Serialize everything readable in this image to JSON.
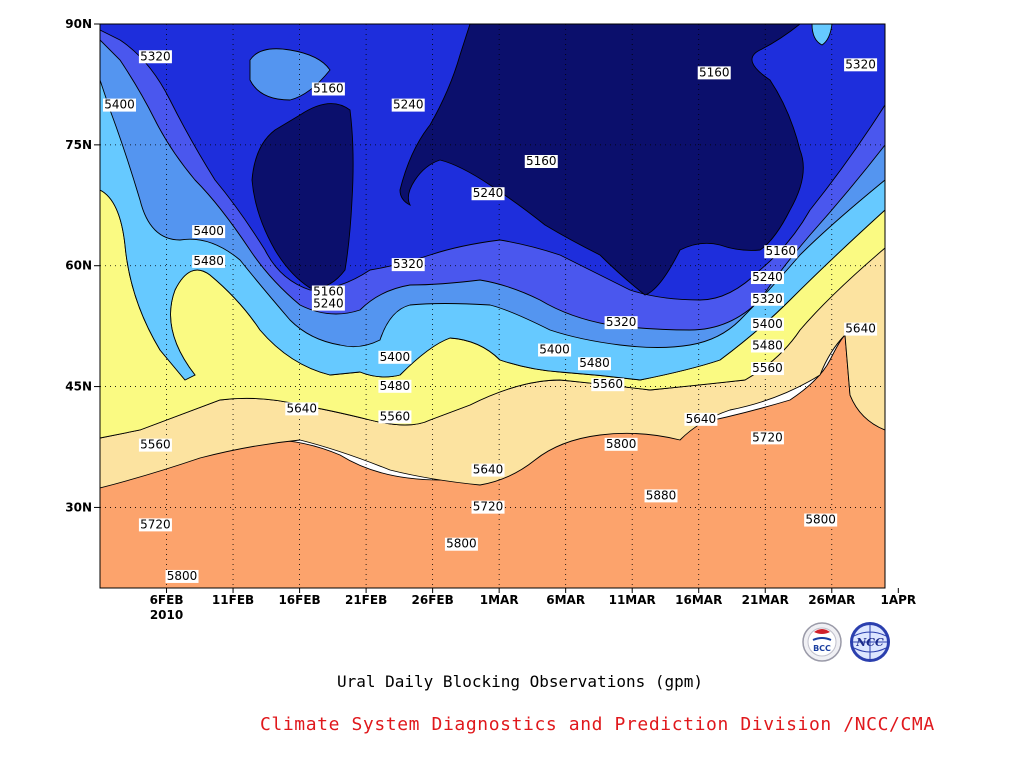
{
  "chart_data": {
    "type": "heatmap",
    "subtype": "filled-contour",
    "title": "Ural Daily Blocking Observations (gpm)",
    "footer": "Climate System Diagnostics and Prediction Division /NCC/CMA",
    "x_ticks": [
      "6FEB",
      "11FEB",
      "16FEB",
      "21FEB",
      "26FEB",
      "1MAR",
      "6MAR",
      "11MAR",
      "16MAR",
      "21MAR",
      "26MAR",
      "1APR"
    ],
    "x_tick_year": "2010",
    "x_range": [
      "2010-02-01",
      "2010-04-01"
    ],
    "y_ticks": [
      "30N",
      "45N",
      "60N",
      "75N",
      "90N"
    ],
    "y_range": [
      20,
      90
    ],
    "grid": true,
    "levels": [
      5160,
      5240,
      5320,
      5400,
      5480,
      5560,
      5640,
      5720,
      5800,
      5880
    ],
    "colors": [
      "#0b0f6c",
      "#1e2edc",
      "#4a57ee",
      "#5495f0",
      "#66c9ff",
      "#fafa82",
      "#fce3a0",
      "#fca36c",
      "#f97242",
      "#f57475",
      "#f03645"
    ],
    "contour_labels": [
      {
        "date": "2010-02-04",
        "lat": 85.5,
        "value": "5320"
      },
      {
        "date": "2010-02-01",
        "lat": 79.5,
        "value": "5400"
      },
      {
        "date": "2010-02-17",
        "lat": 81.5,
        "value": "5160"
      },
      {
        "date": "2010-02-23",
        "lat": 79.5,
        "value": "5240"
      },
      {
        "date": "2010-03-05",
        "lat": 72.5,
        "value": "5160"
      },
      {
        "date": "2010-03-01",
        "lat": 68.5,
        "value": "5240"
      },
      {
        "date": "2010-03-18",
        "lat": 83.5,
        "value": "5160"
      },
      {
        "date": "2010-03-29",
        "lat": 84.5,
        "value": "5320"
      },
      {
        "date": "2010-02-08",
        "lat": 63.8,
        "value": "5400"
      },
      {
        "date": "2010-02-08",
        "lat": 60.1,
        "value": "5480"
      },
      {
        "date": "2010-02-23",
        "lat": 59.7,
        "value": "5320"
      },
      {
        "date": "2010-02-17",
        "lat": 56.3,
        "value": "5160"
      },
      {
        "date": "2010-02-17",
        "lat": 54.8,
        "value": "5240"
      },
      {
        "date": "2010-02-22",
        "lat": 48.2,
        "value": "5400"
      },
      {
        "date": "2010-02-22",
        "lat": 44.6,
        "value": "5480"
      },
      {
        "date": "2010-02-22",
        "lat": 40.8,
        "value": "5560"
      },
      {
        "date": "2010-02-15",
        "lat": 41.8,
        "value": "5640"
      },
      {
        "date": "2010-02-04",
        "lat": 37.3,
        "value": "5560"
      },
      {
        "date": "2010-02-04",
        "lat": 27.4,
        "value": "5720"
      },
      {
        "date": "2010-02-06",
        "lat": 21.0,
        "value": "5800"
      },
      {
        "date": "2010-03-01",
        "lat": 34.2,
        "value": "5640"
      },
      {
        "date": "2010-03-01",
        "lat": 29.6,
        "value": "5720"
      },
      {
        "date": "2010-02-27",
        "lat": 25.0,
        "value": "5800"
      },
      {
        "date": "2010-03-06",
        "lat": 49.1,
        "value": "5400"
      },
      {
        "date": "2010-03-09",
        "lat": 47.4,
        "value": "5480"
      },
      {
        "date": "2010-03-10",
        "lat": 44.8,
        "value": "5560"
      },
      {
        "date": "2010-03-11",
        "lat": 52.5,
        "value": "5320"
      },
      {
        "date": "2010-03-11",
        "lat": 37.4,
        "value": "5800"
      },
      {
        "date": "2010-03-14",
        "lat": 31.0,
        "value": "5880"
      },
      {
        "date": "2010-03-17",
        "lat": 40.5,
        "value": "5640"
      },
      {
        "date": "2010-03-23",
        "lat": 61.3,
        "value": "5160"
      },
      {
        "date": "2010-03-22",
        "lat": 58.1,
        "value": "5240"
      },
      {
        "date": "2010-03-22",
        "lat": 55.4,
        "value": "5320"
      },
      {
        "date": "2010-03-22",
        "lat": 52.3,
        "value": "5400"
      },
      {
        "date": "2010-03-22",
        "lat": 49.6,
        "value": "5480"
      },
      {
        "date": "2010-03-22",
        "lat": 46.8,
        "value": "5560"
      },
      {
        "date": "2010-03-22",
        "lat": 38.2,
        "value": "5720"
      },
      {
        "date": "2010-03-26",
        "lat": 28.0,
        "value": "5800"
      },
      {
        "date": "2010-03-29",
        "lat": 51.7,
        "value": "5640"
      }
    ]
  },
  "logos": {
    "left_label": "BCC",
    "right_label": "NCC",
    "left_icon": "bcc-logo-icon",
    "right_icon": "ncc-logo-icon"
  }
}
